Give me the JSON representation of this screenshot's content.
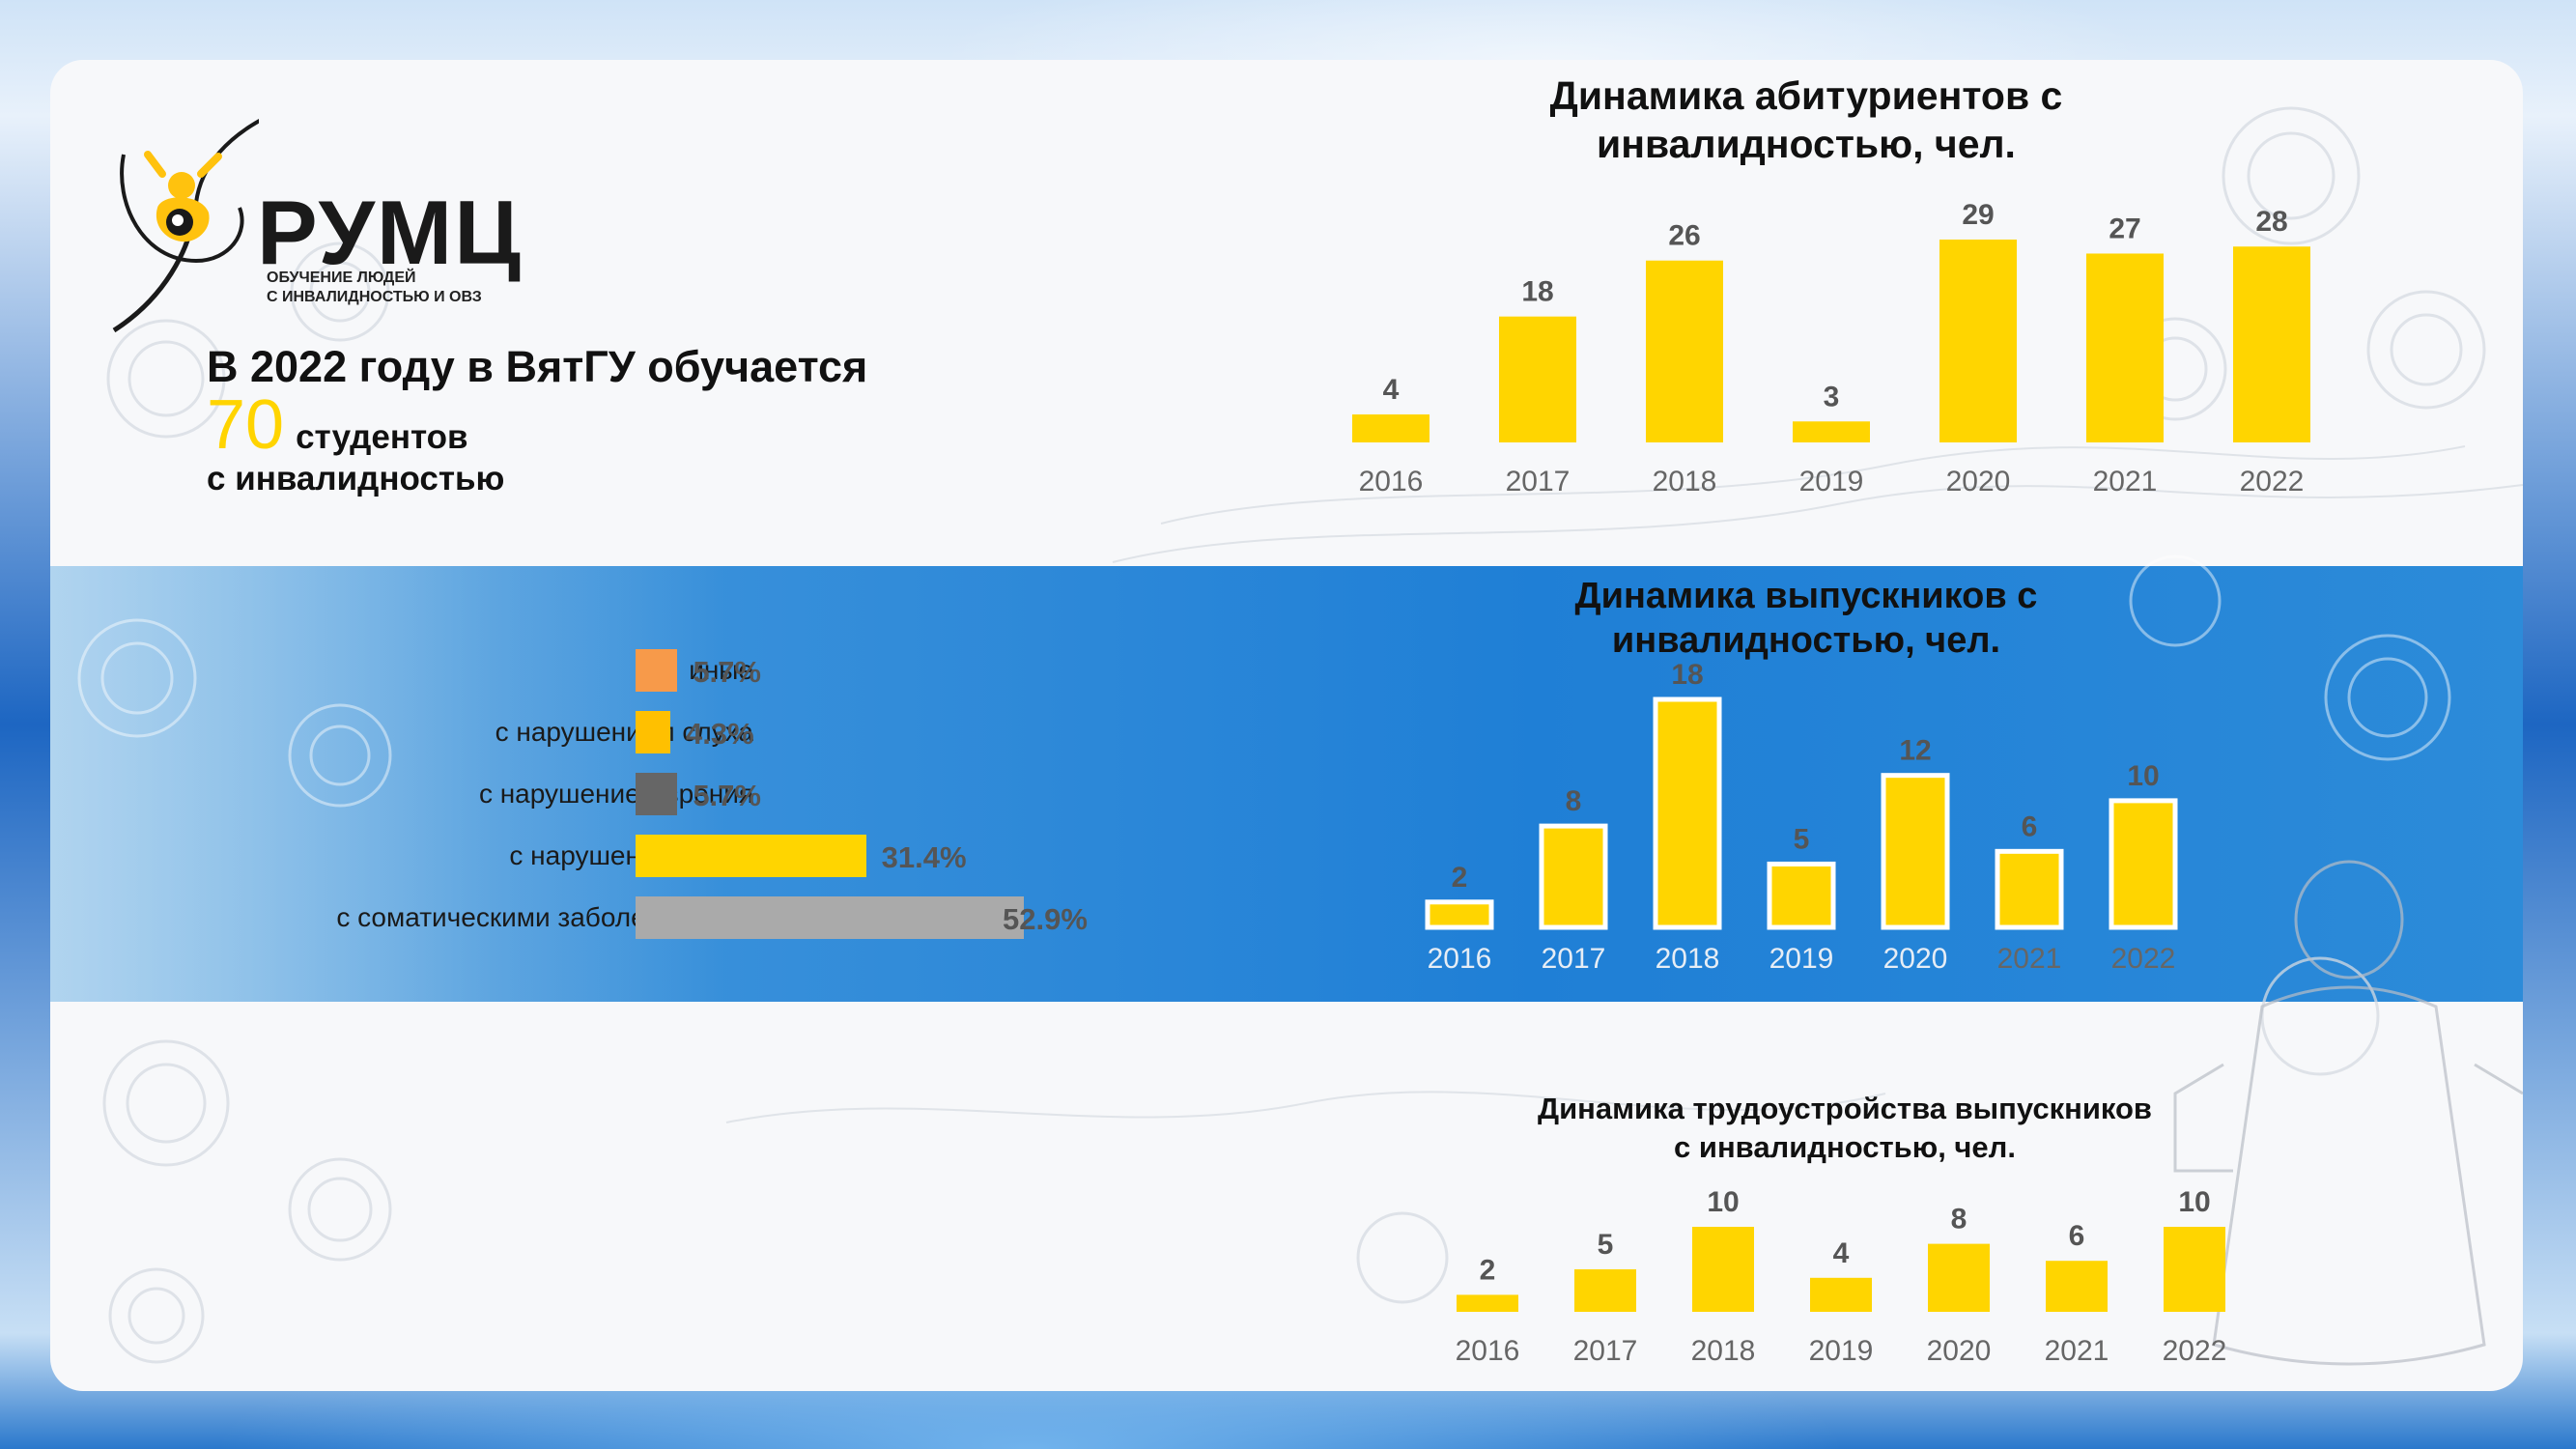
{
  "logo": {
    "name": "РУМЦ",
    "subtitle_line1": "ОБУЧЕНИЕ ЛЮДЕЙ",
    "subtitle_line2": "С ИНВАЛИДНОСТЬЮ И ОВЗ"
  },
  "headline": {
    "line1": "В 2022 году в ВятГУ обучается",
    "number": "70",
    "line2_text": "студентов",
    "line3": "с инвалидностью"
  },
  "colors": {
    "bar_yellow": "#ffd500",
    "orange": "#f79a4a",
    "dark_gray": "#666666",
    "light_gray": "#aaaaaa",
    "band_blue": "#1f7fd6"
  },
  "chart_data": [
    {
      "type": "bar",
      "title_line1": "Динамика абитуриентов с",
      "title_line2": "инвалидностью, чел.",
      "categories": [
        "2016",
        "2017",
        "2018",
        "2019",
        "2020",
        "2021",
        "2022"
      ],
      "values": [
        4,
        18,
        26,
        3,
        29,
        27,
        28
      ],
      "ylim": [
        0,
        29
      ]
    },
    {
      "type": "bar",
      "title_line1": "Динамика выпускников с",
      "title_line2": "инвалидностью, чел.",
      "categories": [
        "2016",
        "2017",
        "2018",
        "2019",
        "2020",
        "2021",
        "2022"
      ],
      "values": [
        2,
        8,
        18,
        5,
        12,
        6,
        10
      ],
      "ylim": [
        0,
        18
      ]
    },
    {
      "type": "bar",
      "title_line1": "Динамика трудоустройства выпускников",
      "title_line2": "с инвалидностью, чел.",
      "categories": [
        "2016",
        "2017",
        "2018",
        "2019",
        "2020",
        "2021",
        "2022"
      ],
      "values": [
        2,
        5,
        10,
        4,
        8,
        6,
        10
      ],
      "ylim": [
        0,
        10
      ]
    },
    {
      "type": "bar",
      "orientation": "horizontal",
      "categories": [
        "иные",
        "с нарушением слуха",
        "с нарушением зрения",
        "с нарушением ОДА",
        "с соматическими заболеваниями"
      ],
      "values": [
        5.7,
        4.3,
        5.7,
        31.4,
        52.9
      ],
      "labels": [
        "5.7%",
        "4.3%",
        "5.7%",
        "31.4%",
        "52.9%"
      ],
      "colors": [
        "#f79a4a",
        "#ffc000",
        "#666666",
        "#ffd500",
        "#aaaaaa"
      ],
      "unit": "%"
    }
  ]
}
